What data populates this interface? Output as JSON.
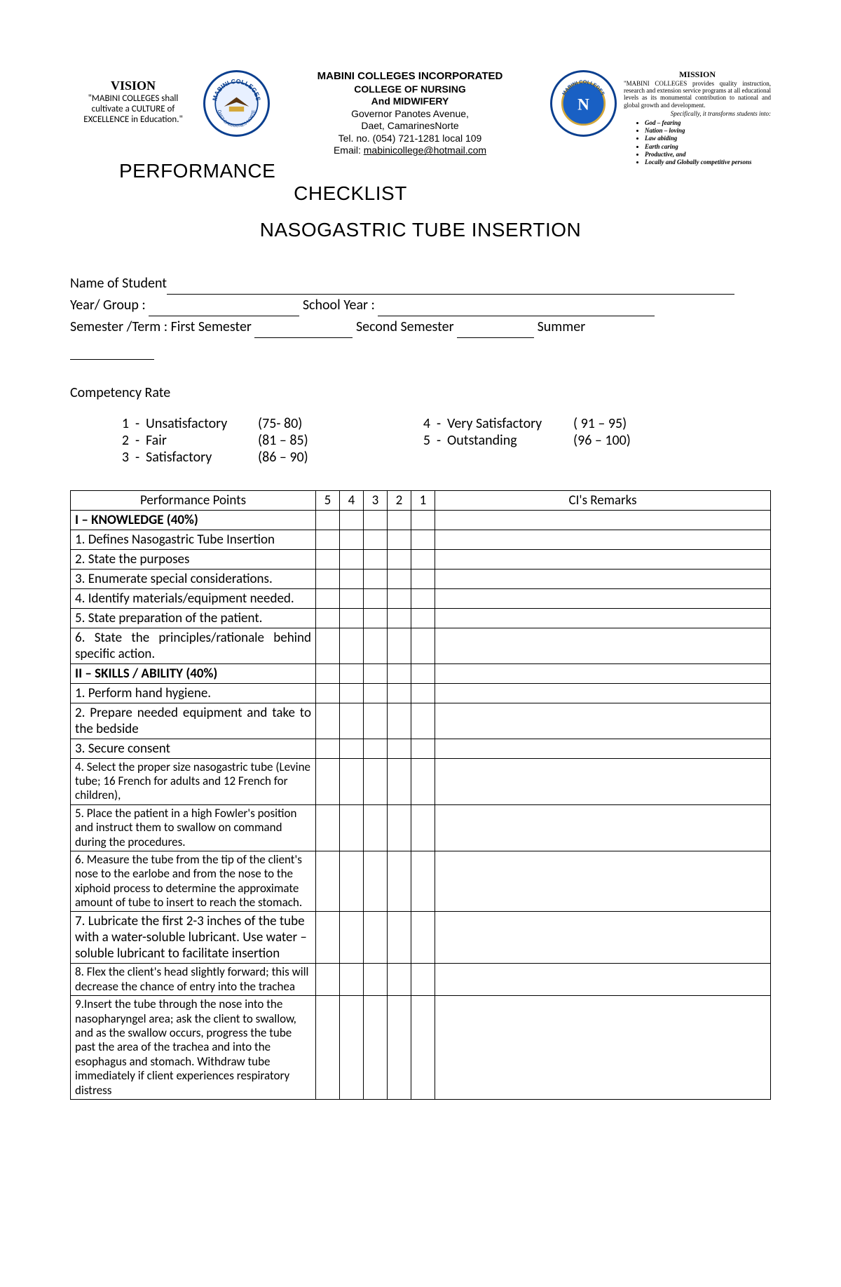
{
  "header": {
    "vision": {
      "title": "VISION",
      "line1": "\"MABINI COLLEGES shall",
      "line2": "cultivate  a CULTURE of",
      "line3": "EXCELLENCE  in Education.\""
    },
    "center": {
      "incorporated": "MABINI COLLEGES  INCORPORATED",
      "college": "COLLEGE  OF  NURSING",
      "and_mid": "And MIDWIFERY",
      "address1": "Governor Panotes Avenue,",
      "address2": "Daet, CamarinesNorte",
      "tel": "Tel. no. (054) 721-1281 local 109",
      "email_prefix": "Email:  ",
      "email": "mabinicollege@hotmail.com"
    },
    "mission": {
      "title": "MISSION",
      "body": "\"MABINI COLLEGES provides quality instruction, research and extension service programs at all educational levels as its monumental contribution to national and global growth and development.",
      "specifically": "Specifically, it transforms students into:",
      "bullets": [
        "God – fearing",
        "Nation – loving",
        "Law abiding",
        "Earth caring",
        "Productive, and",
        "Locally and Globally competitive persons"
      ]
    }
  },
  "titles": {
    "performance": "PERFORMANCE",
    "checklist": "CHECKLIST",
    "main": "NASOGASTRIC TUBE INSERTION"
  },
  "info": {
    "name_label": "Name of Student",
    "year_group_label": "Year/ Group  :",
    "school_year_label": "School Year :",
    "semester_label": "Semester /Term : First Semester",
    "second_sem": "Second Semester",
    "summer": "Summer"
  },
  "competency": {
    "title": "Competency Rate",
    "left": [
      {
        "n": "1",
        "label": "Unsatisfactory",
        "range": "(75- 80)"
      },
      {
        "n": "2",
        "label": "Fair",
        "range": "(81 – 85)"
      },
      {
        "n": "3",
        "label": "Satisfactory",
        "range": "(86 – 90)"
      }
    ],
    "right": [
      {
        "n": "4",
        "label": "Very Satisfactory",
        "range": "( 91 – 95)"
      },
      {
        "n": "5",
        "label": "Outstanding",
        "range": "(96 – 100)"
      }
    ]
  },
  "table": {
    "headers": {
      "points": "Performance Points",
      "c5": "5",
      "c4": "4",
      "c3": "3",
      "c2": "2",
      "c1": "1",
      "remarks": "CI's Remarks"
    },
    "rows": [
      {
        "text": "I – KNOWLEDGE (40%)",
        "bold": true
      },
      {
        "text": "1. Defines Nasogastric Tube Insertion"
      },
      {
        "text": "2. State the purposes"
      },
      {
        "text": "3. Enumerate special considerations."
      },
      {
        "text": "4. Identify materials/equipment needed."
      },
      {
        "text": "5. State preparation of the patient."
      },
      {
        "text": "6. State the principles/rationale behind specific action.",
        "justify": true
      },
      {
        "text": "II – SKILLS / ABILITY (40%)",
        "bold": true
      },
      {
        "text": "1. Perform hand hygiene."
      },
      {
        "text": "2. Prepare needed equipment and take to the bedside",
        "justify": true
      },
      {
        "text": "3. Secure consent"
      },
      {
        "text": "4. Select the proper size nasogastric tube (Levine tube; 16 French for adults and 12 French for children),",
        "small": true
      },
      {
        "text": "5. Place the patient in a high Fowler's position and instruct them to swallow on command during the procedures.",
        "small": true
      },
      {
        "text": "6.  Measure the tube from the tip of the client's nose to the earlobe and from the nose to the xiphoid process to determine the approximate amount of tube to insert to reach the stomach.",
        "small": true
      },
      {
        "text": "7. Lubricate the first 2-3 inches of the tube with a water-soluble lubricant. Use water – soluble lubricant to facilitate insertion"
      },
      {
        "text": "8. Flex the client's head slightly forward; this will decrease the chance of entry into the trachea",
        "small": true
      },
      {
        "text": "9.Insert the tube through the nose into the nasopharyngel area; ask the client to swallow, and as the swallow occurs, progress the tube past the area of the trachea and into the esophagus and stomach. Withdraw tube immediately if client experiences respiratory distress",
        "small": true
      }
    ]
  },
  "colors": {
    "logo_border": "#0a3f8f",
    "logo_gold": "#d4a83a",
    "logo_blue": "#1960c4"
  }
}
